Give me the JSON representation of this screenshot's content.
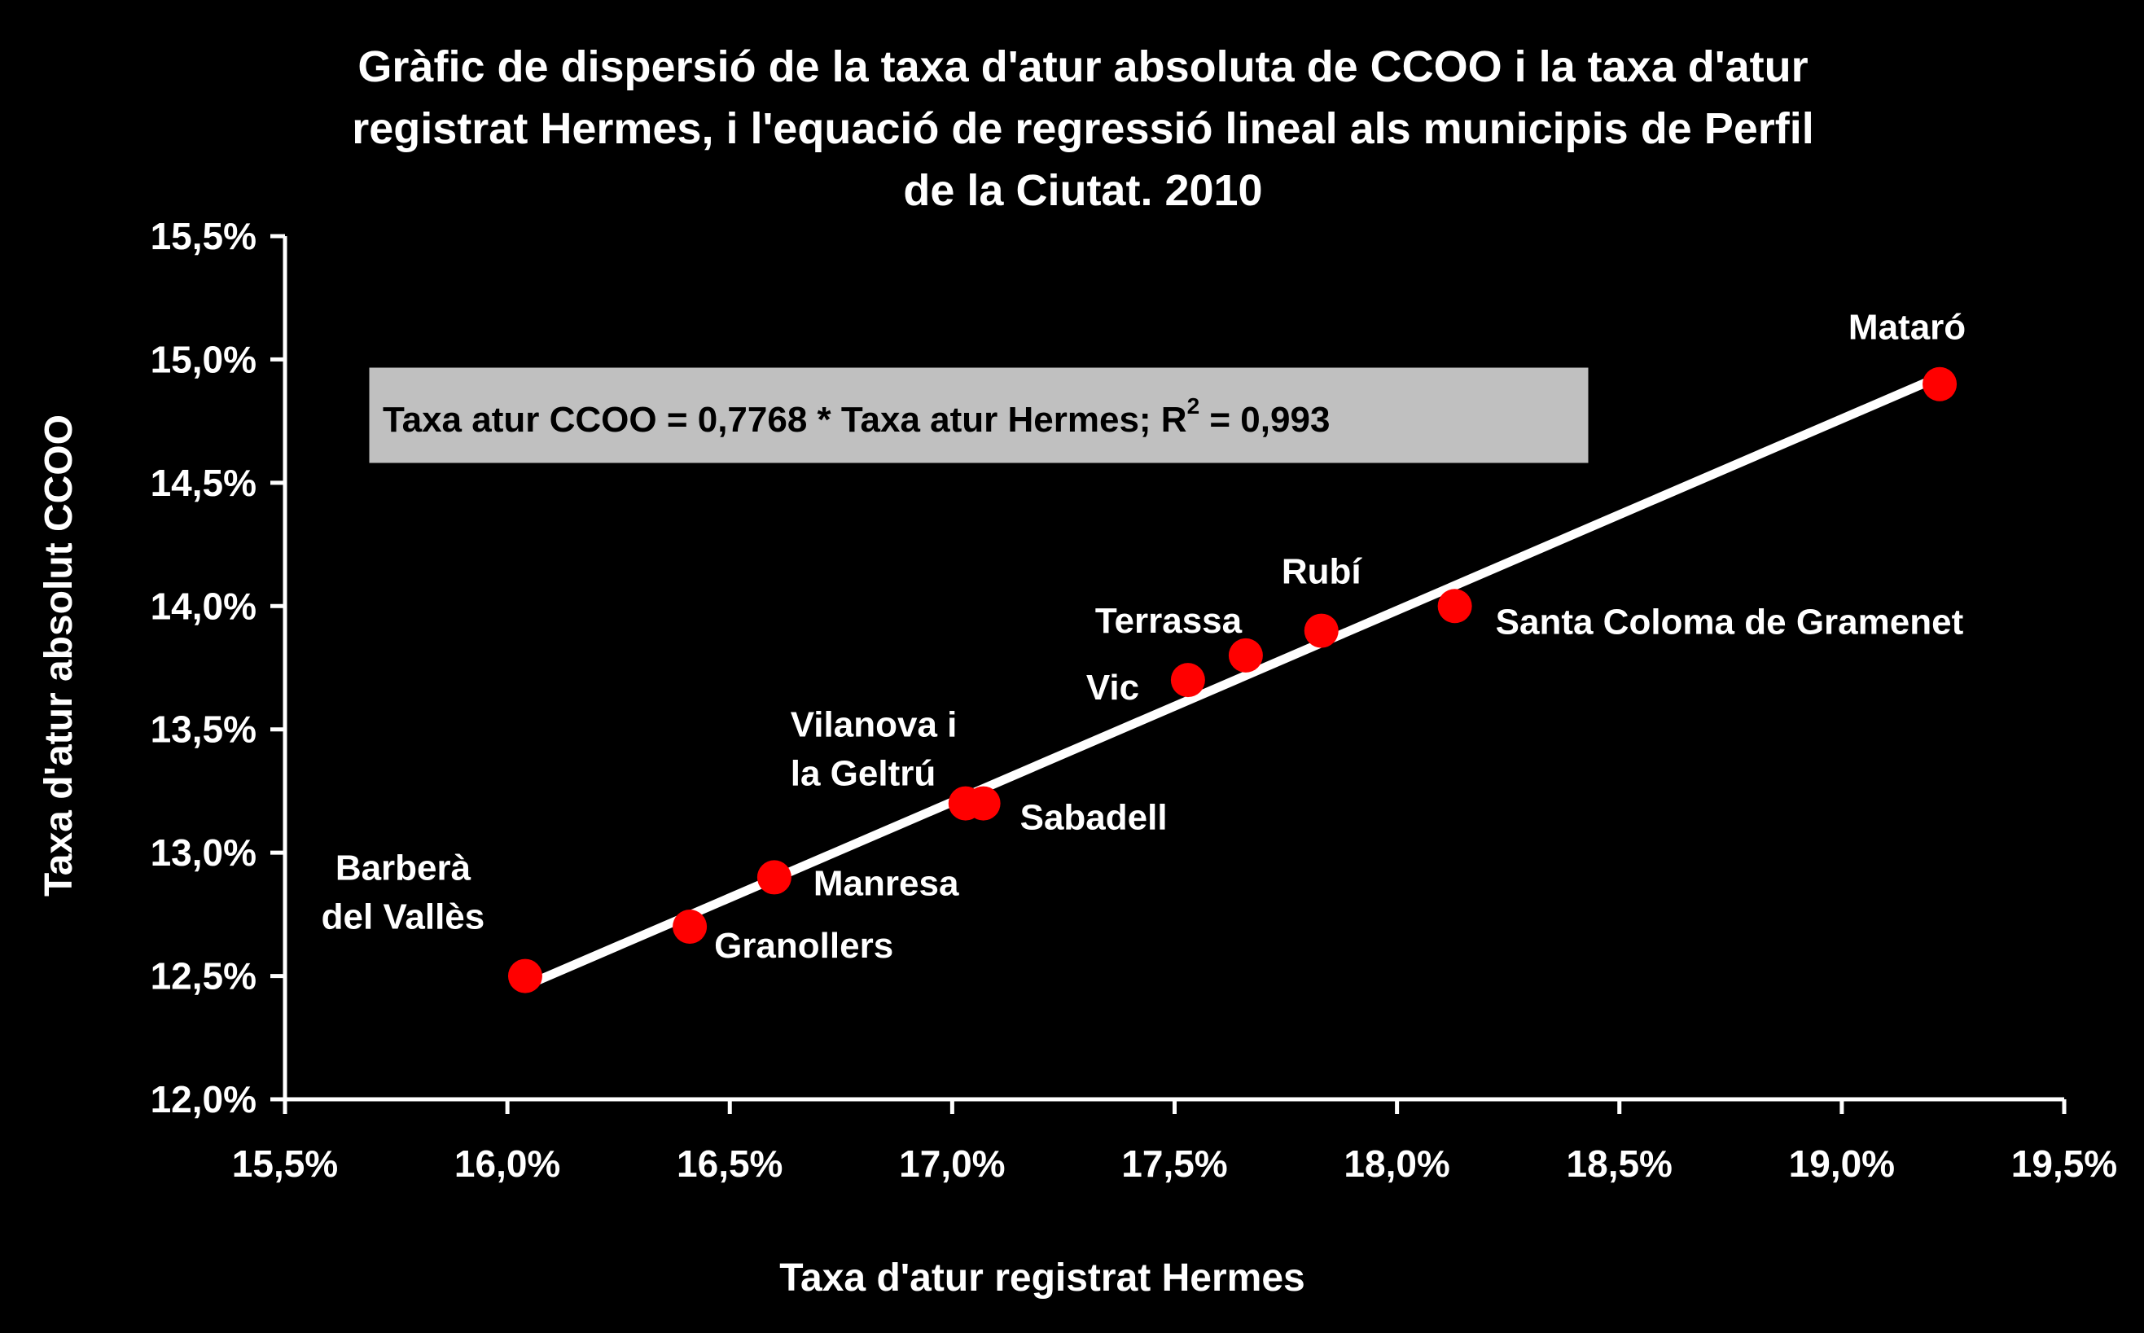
{
  "chart_data": {
    "type": "scatter",
    "title_lines": [
      "Gràfic de dispersió de la taxa d'atur absoluta de CCOO i la taxa d'atur",
      "registrat Hermes, i l'equació de regressió lineal als municipis de Perfil",
      "de la Ciutat. 2010"
    ],
    "xlabel": "Taxa d'atur registrat Hermes",
    "ylabel": "Taxa d'atur absolut CCOO",
    "xlim": [
      15.5,
      19.5
    ],
    "ylim": [
      12.0,
      15.5
    ],
    "x_ticks": [
      15.5,
      16.0,
      16.5,
      17.0,
      17.5,
      18.0,
      18.5,
      19.0,
      19.5
    ],
    "x_tick_labels": [
      "15,5%",
      "16,0%",
      "16,5%",
      "17,0%",
      "17,5%",
      "18,0%",
      "18,5%",
      "19,0%",
      "19,5%"
    ],
    "y_ticks": [
      12.0,
      12.5,
      13.0,
      13.5,
      14.0,
      14.5,
      15.0,
      15.5
    ],
    "y_tick_labels": [
      "12,0%",
      "12,5%",
      "13,0%",
      "13,5%",
      "14,0%",
      "14,5%",
      "15,0%",
      "15,5%"
    ],
    "grid": false,
    "marker_color": "#ff0000",
    "trendline_color": "#ffffff",
    "points": [
      {
        "label": "Barberà\ndel Vallès",
        "x": 16.04,
        "y": 12.5
      },
      {
        "label": "Granollers",
        "x": 16.41,
        "y": 12.7
      },
      {
        "label": "Manresa",
        "x": 16.6,
        "y": 12.9
      },
      {
        "label": "Vilanova i\nla Geltrú",
        "x": 17.03,
        "y": 13.2
      },
      {
        "label": "Sabadell",
        "x": 17.07,
        "y": 13.2
      },
      {
        "label": "Vic",
        "x": 17.53,
        "y": 13.7
      },
      {
        "label": "Terrassa",
        "x": 17.66,
        "y": 13.8
      },
      {
        "label": "Rubí",
        "x": 17.83,
        "y": 13.9
      },
      {
        "label": "Santa Coloma de Gramenet",
        "x": 18.13,
        "y": 14.0
      },
      {
        "label": "Mataró",
        "x": 19.22,
        "y": 14.9
      }
    ],
    "trendline": {
      "x_range": [
        16.04,
        19.22
      ],
      "slope": 0.7768,
      "equation_text": "Taxa atur CCOO = 0,7768 * Taxa atur Hermes; R",
      "equation_sup": "2",
      "equation_tail": " = 0,993",
      "equation_box_color": "#c0c0c0"
    }
  }
}
